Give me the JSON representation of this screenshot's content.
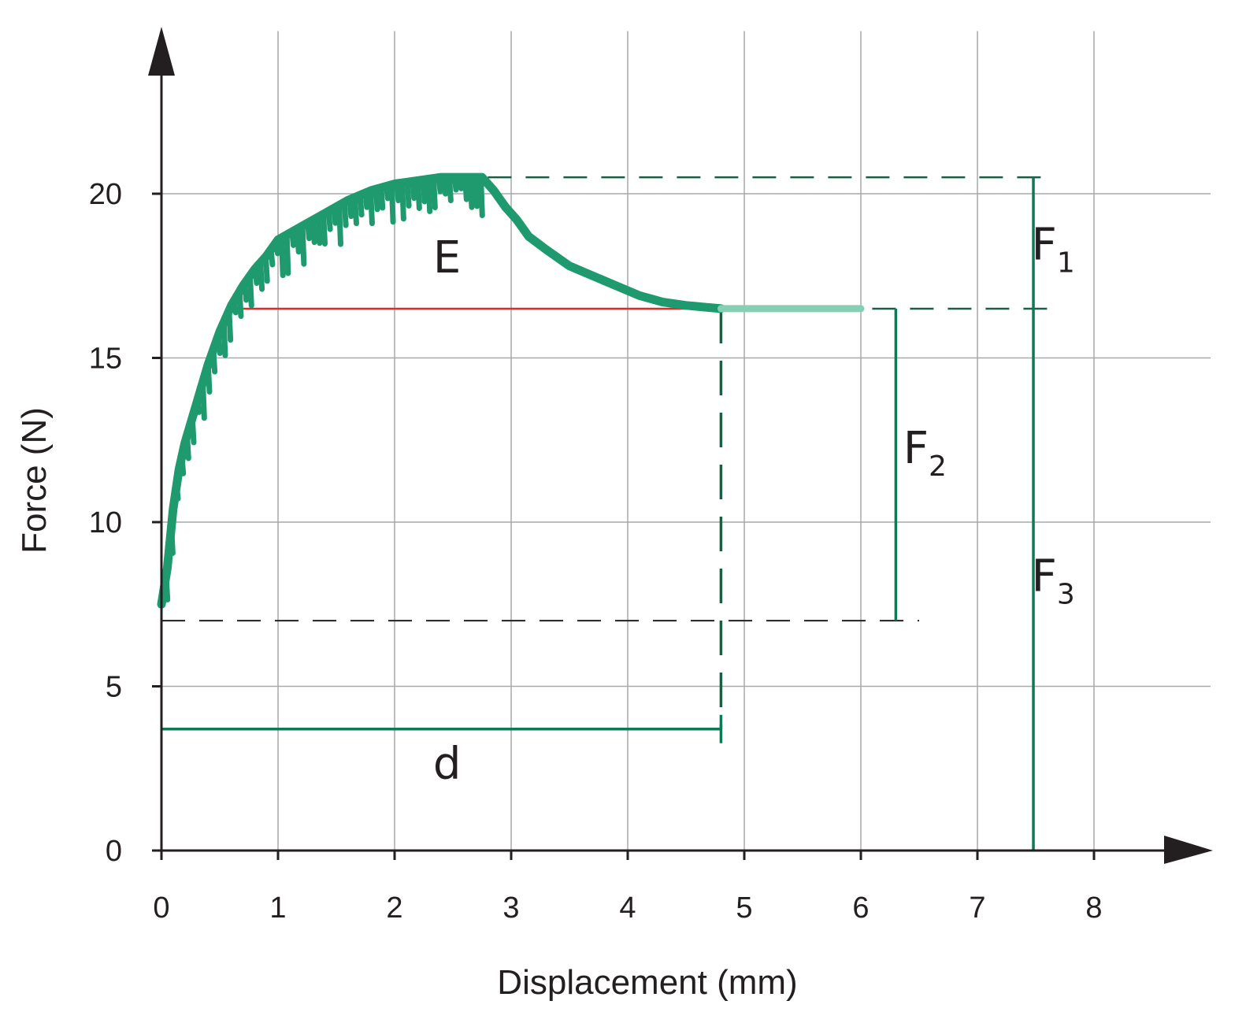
{
  "chart_data": {
    "type": "line",
    "title": "",
    "xlabel": "Displacement (mm)",
    "ylabel": "Force (N)",
    "xlim": [
      0,
      9
    ],
    "ylim": [
      0,
      25
    ],
    "x_ticks": [
      0,
      1,
      2,
      3,
      4,
      5,
      6,
      7,
      8
    ],
    "y_ticks": [
      0,
      5,
      10,
      15,
      20
    ],
    "grid": true,
    "legend": "none",
    "series": [
      {
        "color": "#1f9a6e",
        "style": "thick noisy line",
        "points": [
          [
            0,
            7.5
          ],
          [
            0.05,
            8.6
          ],
          [
            0.1,
            10.4
          ],
          [
            0.15,
            11.6
          ],
          [
            0.2,
            12.4
          ],
          [
            0.3,
            13.6
          ],
          [
            0.4,
            14.8
          ],
          [
            0.5,
            15.8
          ],
          [
            0.6,
            16.6
          ],
          [
            0.7,
            17.2
          ],
          [
            0.8,
            17.7
          ],
          [
            0.9,
            18.1
          ],
          [
            1.0,
            18.6
          ],
          [
            1.2,
            19.0
          ],
          [
            1.4,
            19.4
          ],
          [
            1.6,
            19.8
          ],
          [
            1.8,
            20.1
          ],
          [
            2.0,
            20.3
          ],
          [
            2.2,
            20.4
          ],
          [
            2.4,
            20.5
          ],
          [
            2.6,
            20.5
          ],
          [
            2.75,
            20.5
          ],
          [
            2.85,
            20.1
          ],
          [
            2.95,
            19.6
          ],
          [
            3.05,
            19.2
          ],
          [
            3.15,
            18.7
          ],
          [
            3.3,
            18.3
          ],
          [
            3.5,
            17.8
          ],
          [
            3.7,
            17.5
          ],
          [
            3.9,
            17.2
          ],
          [
            4.1,
            16.9
          ],
          [
            4.3,
            16.7
          ],
          [
            4.5,
            16.6
          ],
          [
            4.8,
            16.5
          ]
        ]
      },
      {
        "color": "#87cfb4",
        "style": "plateau",
        "points": [
          [
            4.8,
            16.5
          ],
          [
            6.0,
            16.5
          ]
        ]
      }
    ],
    "reference_lines": {
      "red_level": {
        "y": 16.5,
        "x_range": [
          0.7,
          4.6
        ],
        "color": "#e02b2b"
      },
      "dashed_f1": {
        "y": 20.5,
        "x_range": [
          2.8,
          7.6
        ]
      },
      "dashed_f2": {
        "y": 16.5,
        "x_range": [
          4.8,
          7.6
        ]
      },
      "dashed_base": {
        "y": 7.0,
        "x_range": [
          0,
          6.5
        ]
      },
      "dashed_vertical": {
        "x": 4.8,
        "y_range": [
          3.7,
          16.5
        ]
      },
      "d_bracket": {
        "y": 3.7,
        "x_range": [
          0,
          4.8
        ]
      },
      "f2_bar": {
        "x": 6.3,
        "y_range": [
          7.0,
          16.5
        ]
      },
      "f1_f3_bar": {
        "x": 7.48,
        "y_range": [
          0,
          20.5
        ]
      }
    },
    "annotations": [
      {
        "id": "E",
        "text": "E",
        "x": 2.45,
        "y": 17.6
      },
      {
        "id": "d",
        "text": "d",
        "x": 2.45,
        "y": 2.2
      },
      {
        "id": "F1",
        "text": "F",
        "sub": "1",
        "x": 7.65,
        "y": 18.0
      },
      {
        "id": "F2",
        "text": "F",
        "sub": "2",
        "x": 6.55,
        "y": 11.8
      },
      {
        "id": "F3",
        "text": "F",
        "sub": "3",
        "x": 7.65,
        "y": 7.9
      }
    ]
  }
}
